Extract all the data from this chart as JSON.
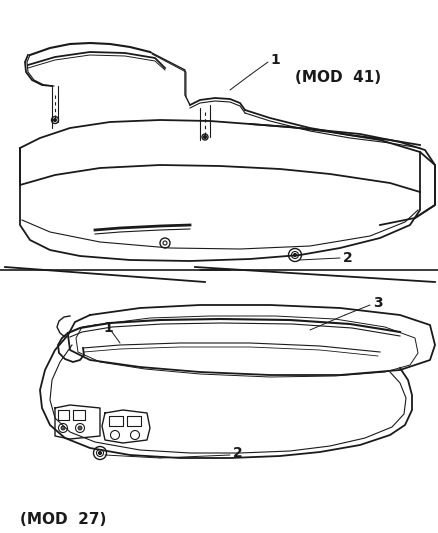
{
  "background_color": "#ffffff",
  "fig_width": 4.38,
  "fig_height": 5.33,
  "dpi": 100,
  "mod41_label": "(MOD  41)",
  "mod27_label": "(MOD  27)",
  "line_color": "#1a1a1a",
  "text_color": "#1a1a1a"
}
